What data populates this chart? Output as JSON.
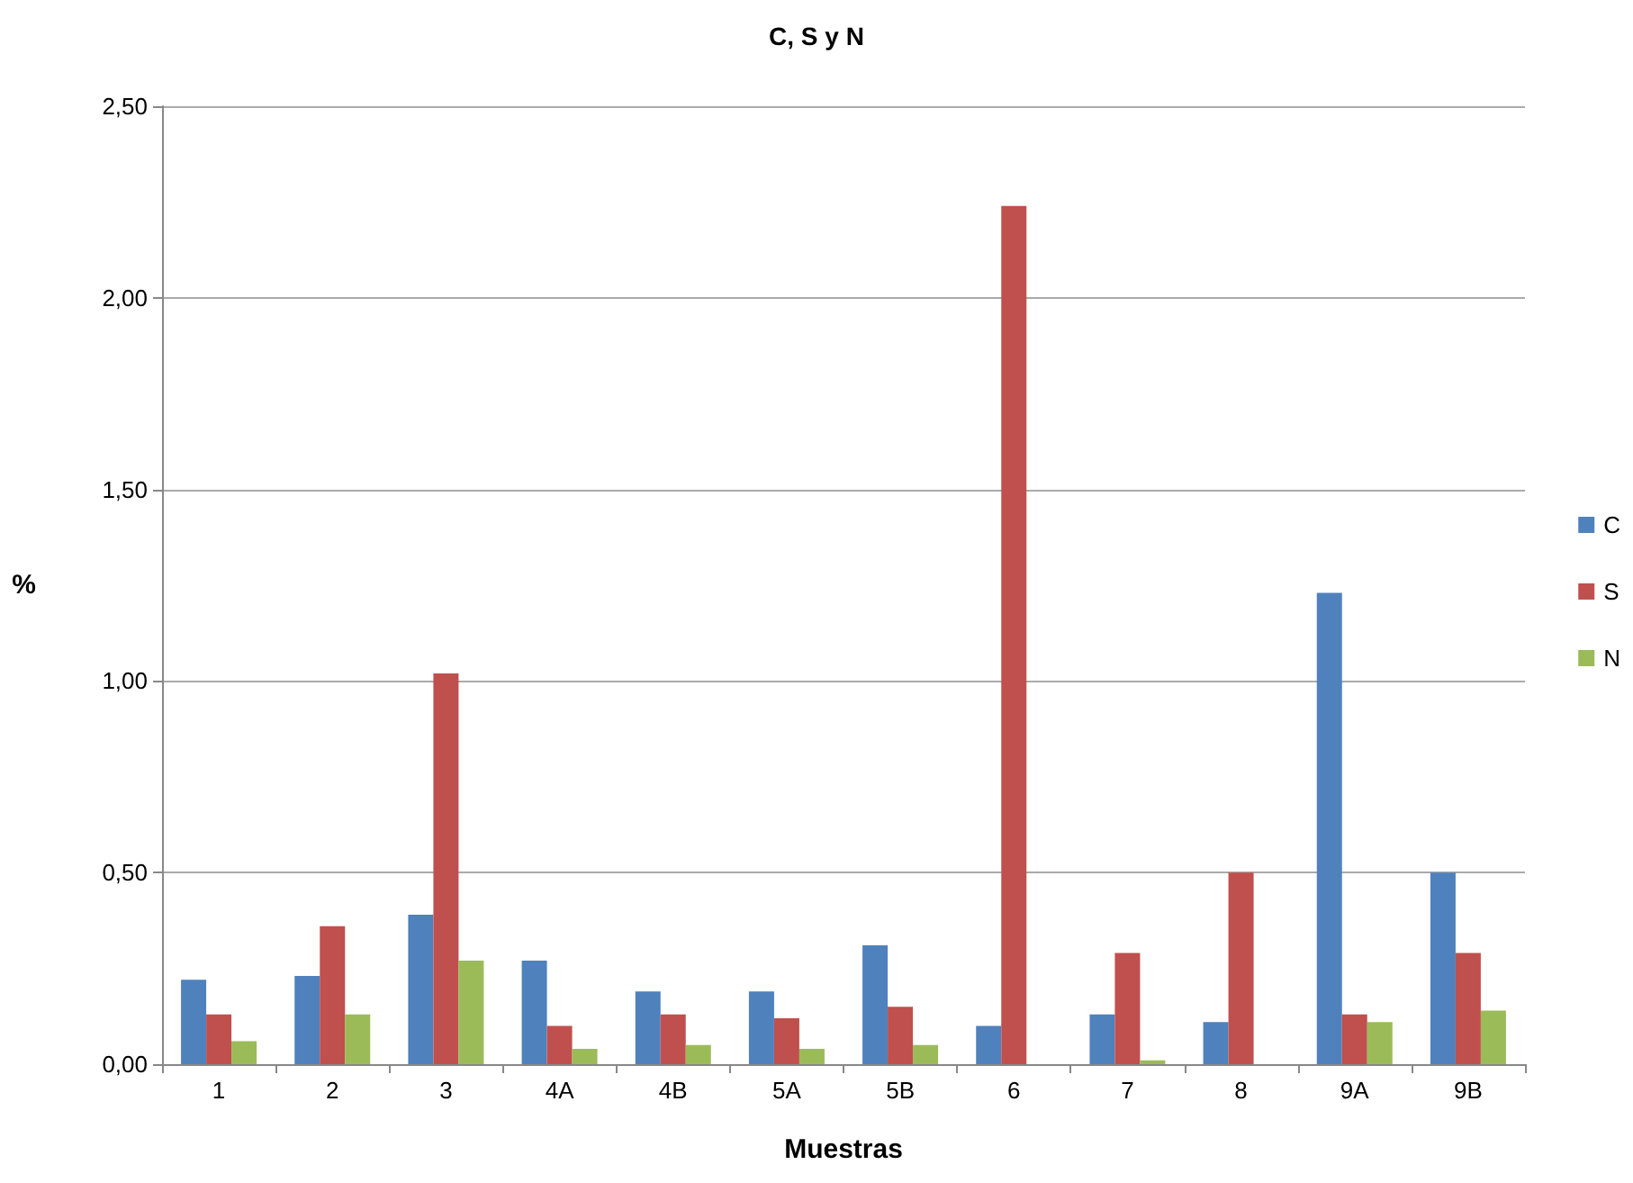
{
  "chart_data": {
    "type": "bar",
    "title": "C, S y N",
    "xlabel": "Muestras",
    "ylabel": "%",
    "categories": [
      "1",
      "2",
      "3",
      "4A",
      "4B",
      "5A",
      "5B",
      "6",
      "7",
      "8",
      "9A",
      "9B"
    ],
    "series": [
      {
        "name": "C",
        "color": "#4f81bd",
        "values": [
          0.22,
          0.23,
          0.39,
          0.27,
          0.19,
          0.19,
          0.31,
          0.1,
          0.13,
          0.11,
          1.23,
          0.5
        ]
      },
      {
        "name": "S",
        "color": "#c0504d",
        "values": [
          0.13,
          0.36,
          1.02,
          0.1,
          0.13,
          0.12,
          0.15,
          2.24,
          0.29,
          0.5,
          0.13,
          0.29
        ]
      },
      {
        "name": "N",
        "color": "#9bbb59",
        "values": [
          0.06,
          0.13,
          0.27,
          0.04,
          0.05,
          0.04,
          0.05,
          0,
          0.01,
          0,
          0.11,
          0.14
        ]
      }
    ],
    "ylim": [
      0,
      2.5
    ],
    "yticks": [
      {
        "value": 0,
        "label": "0,00"
      },
      {
        "value": 0.5,
        "label": "0,50"
      },
      {
        "value": 1,
        "label": "1,00"
      },
      {
        "value": 1.5,
        "label": "1,50"
      },
      {
        "value": 2,
        "label": "2,00"
      },
      {
        "value": 2.5,
        "label": "2,50"
      }
    ],
    "grid": "y",
    "legend": "right"
  }
}
